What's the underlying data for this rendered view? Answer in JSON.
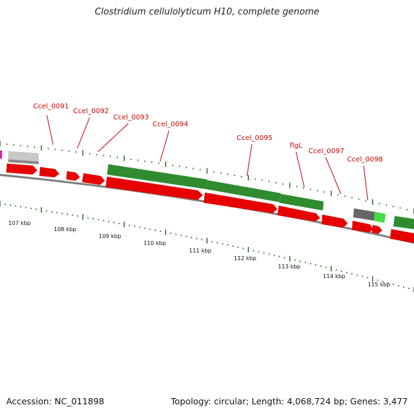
{
  "title": "Clostridium cellulolyticum H10, complete genome",
  "footer": {
    "accession": "Accession: NC_011898",
    "summary": "Topology: circular; Length: 4,068,724 bp; Genes: 3,477"
  },
  "colors": {
    "forward_gene": "#e60000",
    "reverse_gene": "#2e8b2e",
    "label": "#cc0000",
    "backbone": "#808080",
    "tick": "#2e7d2e",
    "other_gray": "#c8c8c8",
    "dark_gray": "#666666",
    "light_green": "#44dd44",
    "magenta": "#dd22aa"
  },
  "gene_labels": [
    "Ccel_0091",
    "Ccel_0092",
    "Ccel_0093",
    "Ccel_0094",
    "Ccel_0095",
    "flgL",
    "Ccel_0097",
    "Ccel_0098"
  ],
  "scale_labels": [
    "107 kbp",
    "108 kbp",
    "109 kbp",
    "110 kbp",
    "111 kbp",
    "112 kbp",
    "113 kbp",
    "114 kbp",
    "115 kbp"
  ]
}
